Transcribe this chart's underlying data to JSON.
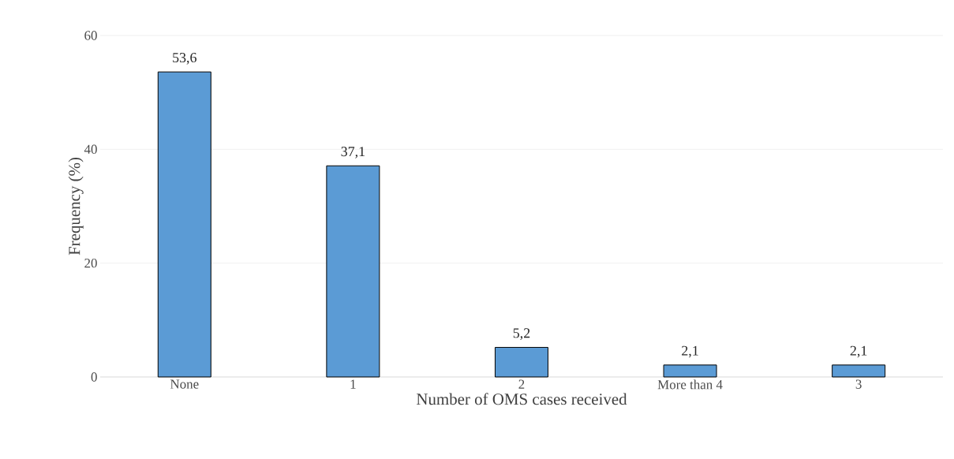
{
  "chart_data": {
    "type": "bar",
    "xlabel": "Number of OMS cases received",
    "ylabel": "Frequency (%)",
    "categories": [
      "None",
      "1",
      "2",
      "More than 4",
      "3"
    ],
    "values": [
      53.6,
      37.1,
      5.2,
      2.1,
      2.1
    ],
    "value_labels": [
      "53,6",
      "37,1",
      "5,2",
      "2,1",
      "2,1"
    ],
    "color": "#5b9bd5",
    "ylim": [
      0,
      60
    ],
    "yticks": [
      0,
      20,
      40,
      60
    ],
    "grid": "y"
  }
}
